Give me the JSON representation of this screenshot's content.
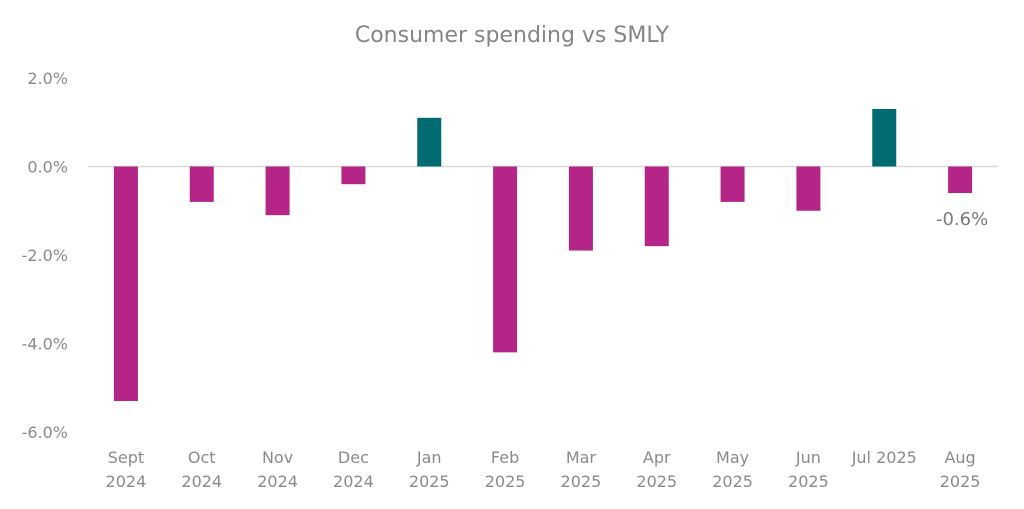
{
  "chart_data": {
    "type": "bar",
    "title": "Consumer spending vs SMLY",
    "xlabel": "",
    "ylabel": "",
    "ylim": [
      -6,
      2
    ],
    "yticks": [
      2,
      0,
      -2,
      -4,
      -6
    ],
    "ytick_labels": [
      "2.0%",
      "0.0%",
      "-2.0%",
      "-4.0%",
      "-6.0%"
    ],
    "grid": false,
    "legend": "none",
    "categories": [
      [
        "Sept",
        "2024"
      ],
      [
        "Oct",
        "2024"
      ],
      [
        "Nov",
        "2024"
      ],
      [
        "Dec",
        "2024"
      ],
      [
        "Jan",
        "2025"
      ],
      [
        "Feb",
        "2025"
      ],
      [
        "Mar",
        "2025"
      ],
      [
        "Apr",
        "2025"
      ],
      [
        "May",
        "2025"
      ],
      [
        "Jun",
        "2025"
      ],
      [
        "Jul 2025"
      ],
      [
        "Aug",
        "2025"
      ]
    ],
    "values": [
      -5.3,
      -0.8,
      -1.1,
      -0.4,
      1.1,
      -4.2,
      -1.9,
      -1.8,
      -0.8,
      -1.0,
      1.3,
      -0.6
    ],
    "data_labels": [
      {
        "index": 11,
        "text": "-0.6%"
      }
    ],
    "colors": {
      "negative": "#B52587",
      "positive": "#006C72",
      "axis_line": "#d9d9d9",
      "text": "#8a8a8a"
    }
  }
}
